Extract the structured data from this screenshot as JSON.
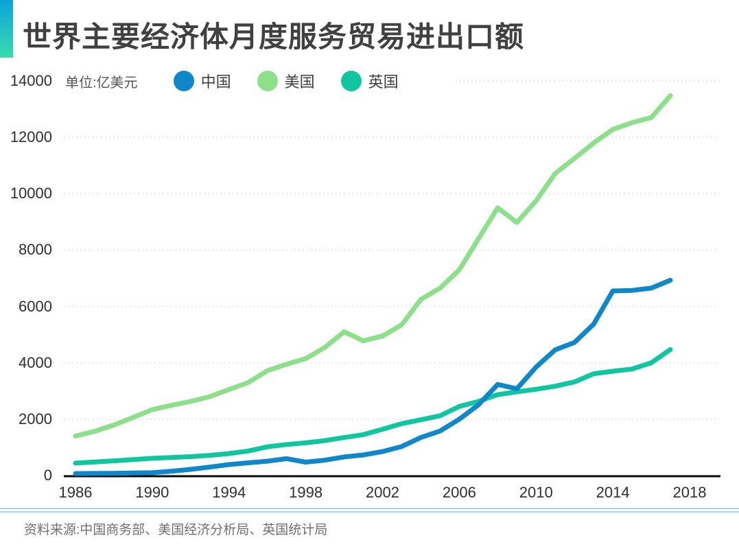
{
  "chart_data": {
    "type": "line",
    "title": "世界主要经济体月度服务贸易进出口额",
    "unit_label": "单位:亿美元",
    "source": "资料来源:中国商务部、美国经济分析局、英国统计局",
    "legend_position": "top-left",
    "grid": "horizontal-dotted",
    "xlim": [
      1986,
      2018
    ],
    "ylim": [
      0,
      14000
    ],
    "xticks": [
      1986,
      1990,
      1994,
      1998,
      2002,
      2006,
      2010,
      2014,
      2018
    ],
    "yticks": [
      0,
      2000,
      4000,
      6000,
      8000,
      10000,
      12000,
      14000
    ],
    "x": [
      1986,
      1987,
      1988,
      1989,
      1990,
      1991,
      1992,
      1993,
      1994,
      1995,
      1996,
      1997,
      1998,
      1999,
      2000,
      2001,
      2002,
      2003,
      2004,
      2005,
      2006,
      2007,
      2008,
      2009,
      2010,
      2011,
      2012,
      2013,
      2014,
      2015,
      2016,
      2017
    ],
    "series": [
      {
        "name": "中国",
        "color": "#0f87c9",
        "values": [
          70,
          75,
          80,
          90,
          100,
          150,
          220,
          300,
          390,
          450,
          510,
          600,
          475,
          545,
          660,
          730,
          850,
          1030,
          1350,
          1580,
          2000,
          2510,
          3230,
          3080,
          3850,
          4460,
          4720,
          5370,
          6550,
          6570,
          6650,
          6930
        ]
      },
      {
        "name": "美国",
        "color": "#8ce08a",
        "values": [
          1400,
          1570,
          1790,
          2060,
          2340,
          2490,
          2630,
          2800,
          3050,
          3300,
          3720,
          3950,
          4150,
          4550,
          5100,
          4780,
          4950,
          5350,
          6250,
          6650,
          7300,
          8400,
          9500,
          8980,
          9750,
          10720,
          11250,
          11800,
          12280,
          12520,
          12700,
          13480
        ]
      },
      {
        "name": "英国",
        "color": "#0fc6a0",
        "values": [
          440,
          480,
          520,
          565,
          610,
          640,
          670,
          715,
          780,
          870,
          1020,
          1100,
          1160,
          1240,
          1350,
          1450,
          1640,
          1840,
          1980,
          2120,
          2450,
          2630,
          2870,
          2970,
          3060,
          3170,
          3320,
          3610,
          3700,
          3780,
          4000,
          4470
        ]
      }
    ],
    "accent_colors": [
      "#0ba3d9",
      "#39dcae"
    ],
    "axis_color": "#0a0a0a",
    "gridline_color": "#e7e7e7",
    "divider_color": "#a6d3f1"
  }
}
